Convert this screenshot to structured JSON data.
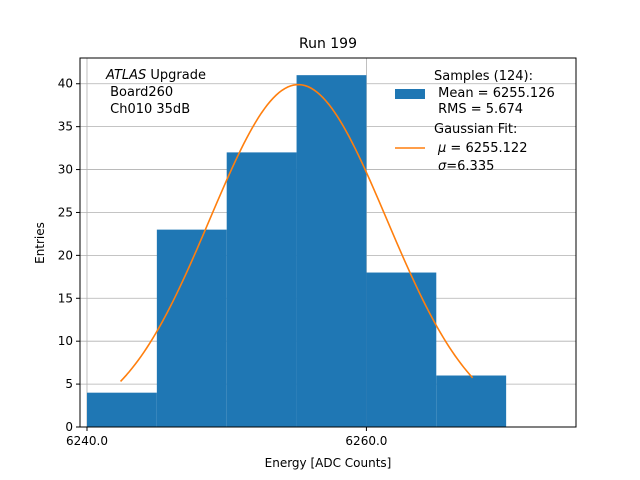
{
  "chart_data": {
    "type": "bar",
    "title": "Run 199",
    "xlabel": "Energy [ADC Counts]",
    "ylabel": "Entries",
    "xlim": [
      6239.5,
      6275.0
    ],
    "ylim": [
      0,
      43
    ],
    "grid": true,
    "bins": [
      {
        "x0": 6240.0,
        "x1": 6245.0,
        "count": 4
      },
      {
        "x0": 6245.0,
        "x1": 6250.0,
        "count": 23
      },
      {
        "x0": 6250.0,
        "x1": 6255.0,
        "count": 32
      },
      {
        "x0": 6255.0,
        "x1": 6260.0,
        "count": 41
      },
      {
        "x0": 6260.0,
        "x1": 6265.0,
        "count": 18
      },
      {
        "x0": 6265.0,
        "x1": 6270.0,
        "count": 6
      }
    ],
    "x_ticks": [
      {
        "value": 6240.0,
        "label": "6240.0"
      },
      {
        "value": 6260.0,
        "label": "6260.0"
      }
    ],
    "y_ticks": [
      {
        "value": 0,
        "label": "0"
      },
      {
        "value": 5,
        "label": "5"
      },
      {
        "value": 10,
        "label": "10"
      },
      {
        "value": 15,
        "label": "15"
      },
      {
        "value": 20,
        "label": "20"
      },
      {
        "value": 25,
        "label": "25"
      },
      {
        "value": 30,
        "label": "30"
      },
      {
        "value": 35,
        "label": "35"
      },
      {
        "value": 40,
        "label": "40"
      }
    ],
    "fit": {
      "type": "gaussian",
      "amplitude": 39.9,
      "mu": 6255.122,
      "sigma": 6.335,
      "x_range": [
        6242.4,
        6267.6
      ]
    },
    "annotation": {
      "italic": "ATLAS",
      "rest": " Upgrade",
      "line2": " Board260",
      "line3": " Ch010 35dB"
    },
    "legend": {
      "placement": "top-right",
      "samples_title": "Samples (124):",
      "samples_mean": " Mean = 6255.126",
      "samples_rms": " RMS = 5.674",
      "fit_title": "Gaussian Fit:",
      "fit_mu_symbol": "μ",
      "fit_mu_rest": " = 6255.122",
      "fit_sigma_symbol": "σ",
      "fit_sigma_rest": "=6.335"
    },
    "colors": {
      "bars": "#1f77b4",
      "fit": "#ff7f0e",
      "grid": "#b0b0b0"
    }
  }
}
